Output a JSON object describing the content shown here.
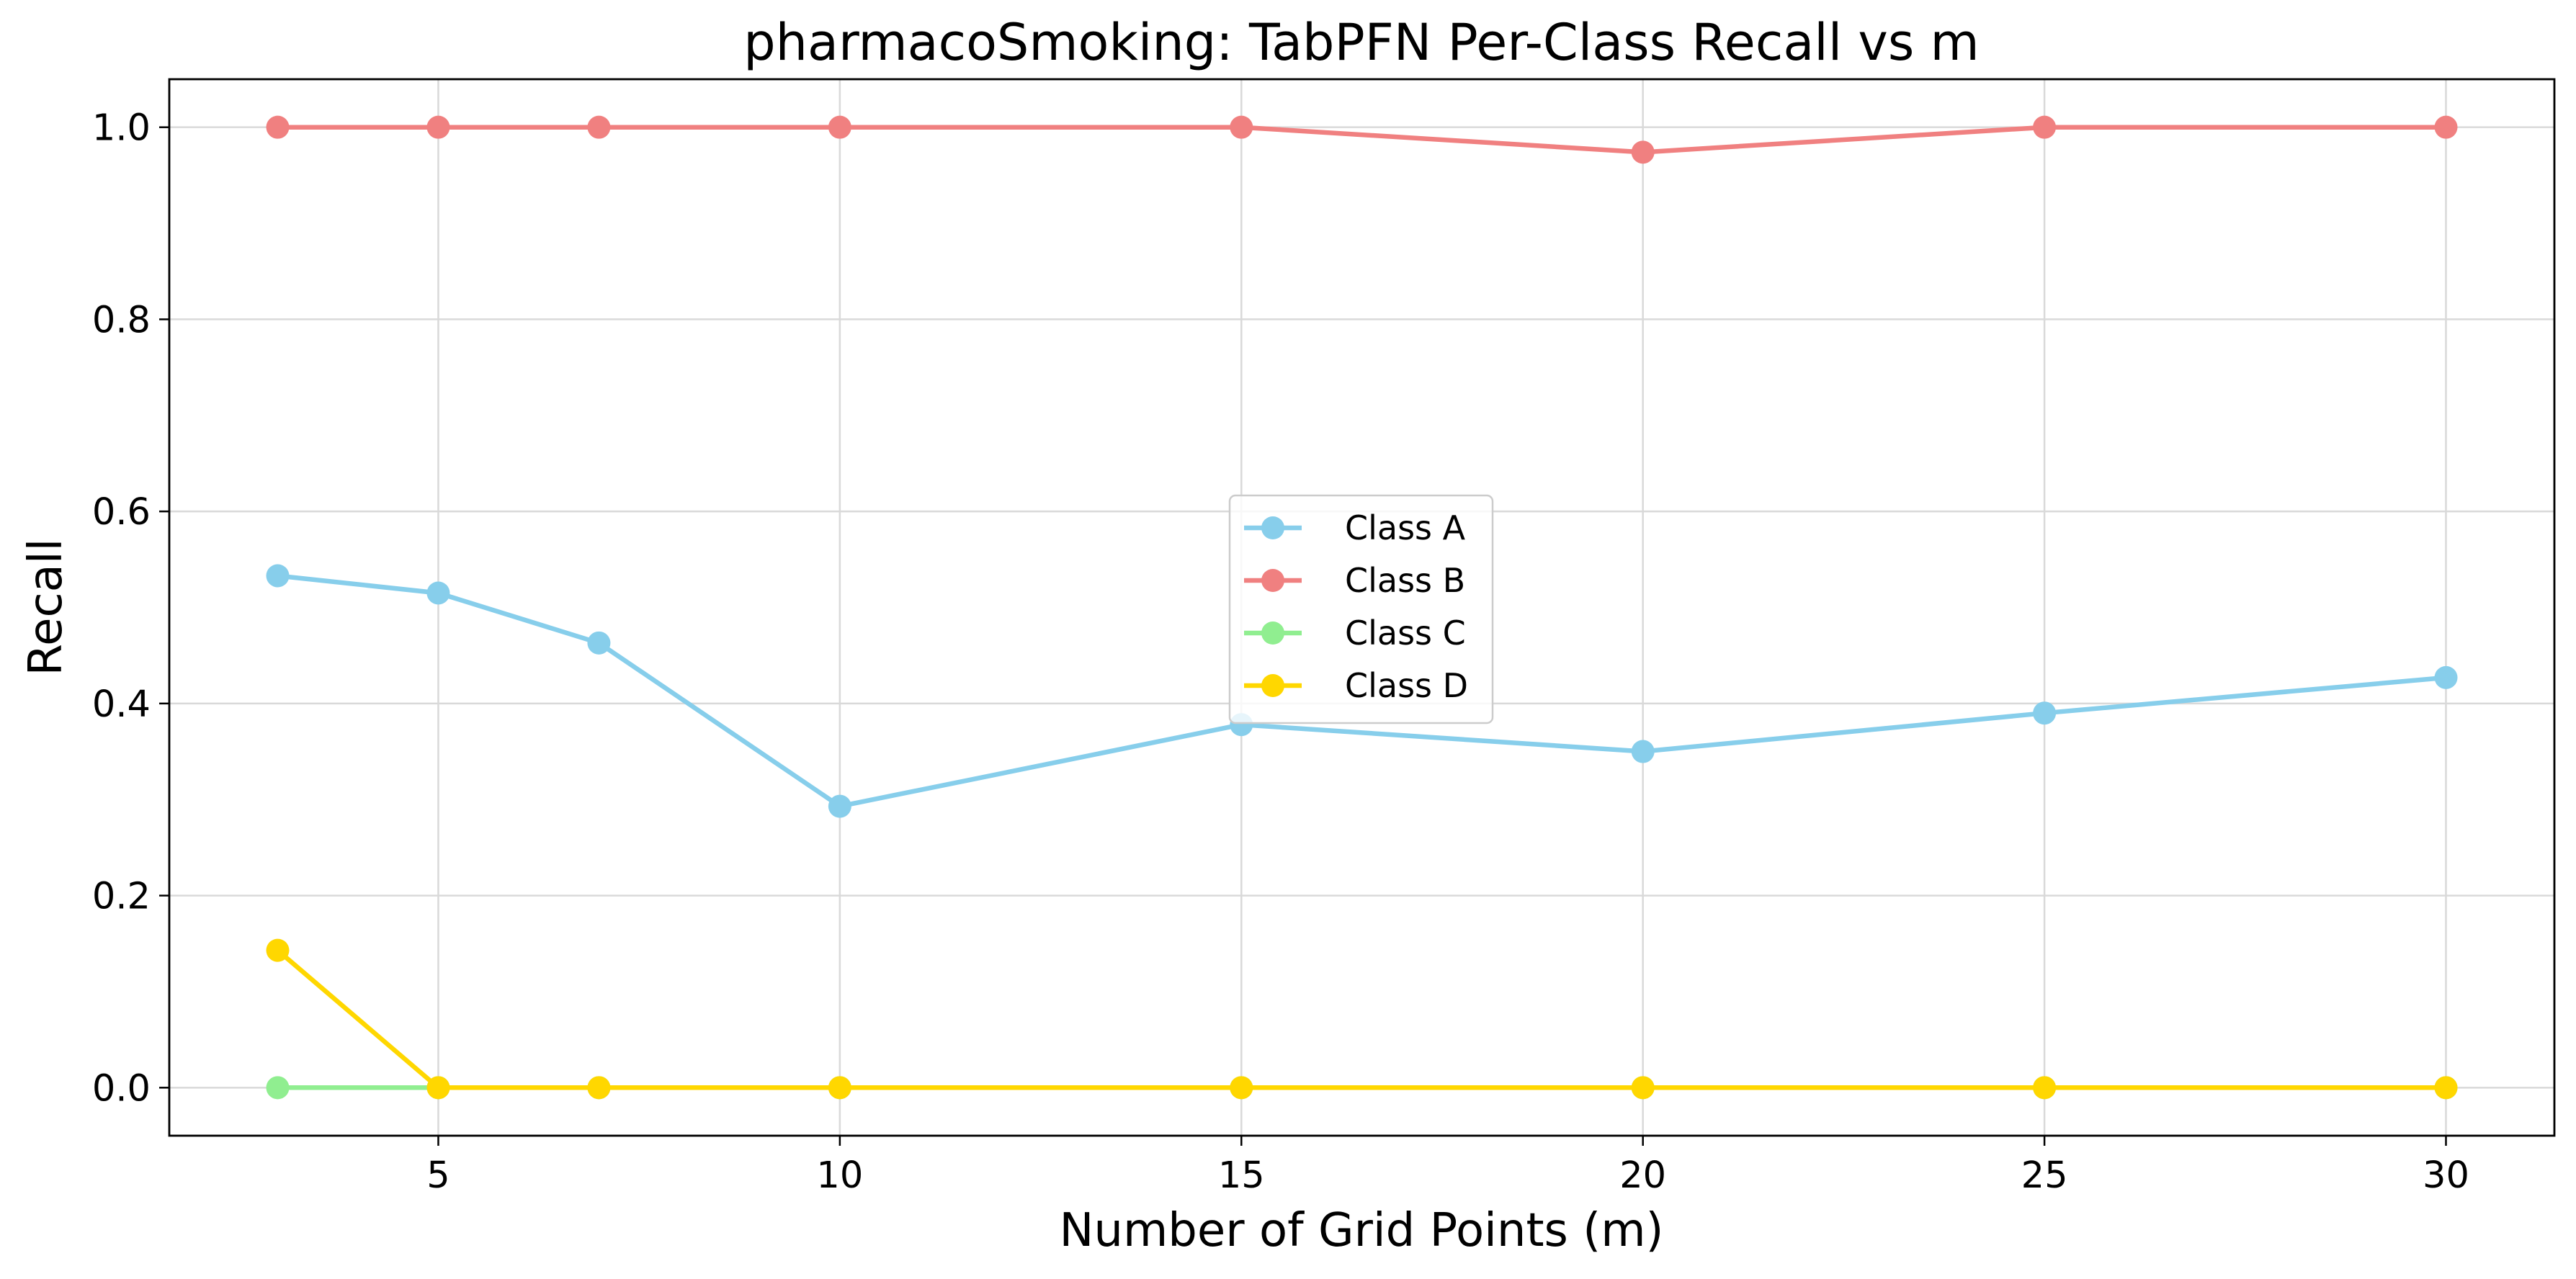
{
  "chart_data": {
    "type": "line",
    "title": "pharmacoSmoking: TabPFN Per-Class Recall vs m",
    "xlabel": "Number of Grid Points (m)",
    "ylabel": "Recall",
    "x": [
      3,
      5,
      7,
      10,
      15,
      20,
      25,
      30
    ],
    "xlim": [
      1.65,
      31.35
    ],
    "ylim": [
      -0.05,
      1.05
    ],
    "xticks": [
      5,
      10,
      15,
      20,
      25,
      30
    ],
    "yticks": [
      0.0,
      0.2,
      0.4,
      0.6,
      0.8,
      1.0
    ],
    "xtick_labels": [
      "5",
      "10",
      "15",
      "20",
      "25",
      "30"
    ],
    "ytick_labels": [
      "0.0",
      "0.2",
      "0.4",
      "0.6",
      "0.8",
      "1.0"
    ],
    "grid": true,
    "legend_position": "center",
    "series": [
      {
        "name": "Class A",
        "color": "#87CEEB",
        "values": [
          0.533,
          0.515,
          0.463,
          0.293,
          0.378,
          0.35,
          0.39,
          0.427
        ]
      },
      {
        "name": "Class B",
        "color": "#F08080",
        "values": [
          1.0,
          1.0,
          1.0,
          1.0,
          1.0,
          0.974,
          1.0,
          1.0
        ]
      },
      {
        "name": "Class C",
        "color": "#90EE90",
        "values": [
          0.0,
          0.0,
          0.0,
          0.0,
          0.0,
          0.0,
          0.0,
          0.0
        ]
      },
      {
        "name": "Class D",
        "color": "#FFD700",
        "values": [
          0.143,
          0.0,
          0.0,
          0.0,
          0.0,
          0.0,
          0.0,
          0.0
        ]
      }
    ]
  }
}
